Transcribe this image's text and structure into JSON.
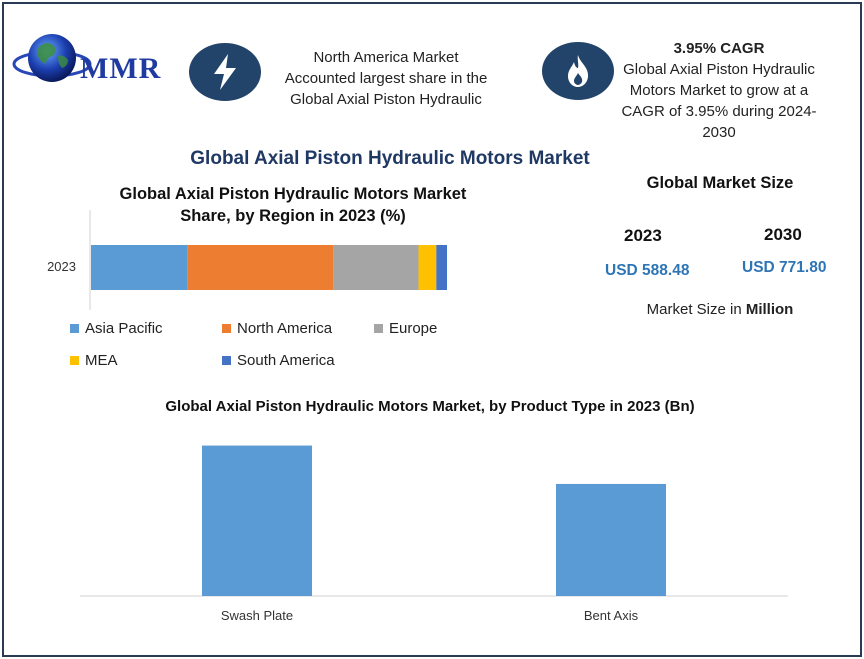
{
  "brand": {
    "logo_text": "MMR"
  },
  "highlights": {
    "share_note": "North America Market Accounted largest share in the Global Axial Piston Hydraulic",
    "share_note_lines": [
      "North America Market",
      "Accounted largest share in the",
      "Global Axial Piston Hydraulic"
    ],
    "cagr_title": "3.95% CAGR",
    "cagr_lines": [
      "Global Axial Piston Hydraulic",
      "Motors Market to grow at a",
      "CAGR of 3.95% during 2024-",
      "2030"
    ]
  },
  "main_title": "Global Axial Piston Hydraulic Motors Market",
  "market_size": {
    "title": "Global Market Size",
    "year_1": "2023",
    "value_1": "USD 588.48",
    "year_2": "2030",
    "value_2": "USD 771.80",
    "note_prefix": "Market Size in ",
    "note_bold": "Million"
  },
  "colors": {
    "Asia Pacific": "#5b9bd5",
    "North America": "#ed7d31",
    "Europe": "#a5a5a5",
    "MEA": "#ffc000",
    "South America": "#4472c4",
    "product_bar": "#5b9bd5"
  },
  "chart_data": [
    {
      "type": "bar",
      "orientation": "horizontal-stacked",
      "title_lines": [
        "Global Axial Piston Hydraulic Motors Market",
        "Share, by Region in 2023 (%)"
      ],
      "categories": [
        "2023"
      ],
      "series": [
        {
          "name": "Asia Pacific",
          "values": [
            27
          ]
        },
        {
          "name": "North America",
          "values": [
            41
          ]
        },
        {
          "name": "Europe",
          "values": [
            24
          ]
        },
        {
          "name": "MEA",
          "values": [
            5
          ]
        },
        {
          "name": "South America",
          "values": [
            3
          ]
        }
      ],
      "legend": "bottom",
      "grid": false
    },
    {
      "type": "bar",
      "title": "Global Axial Piston Hydraulic Motors Market, by Product Type in 2023 (Bn)",
      "categories": [
        "Swash Plate",
        "Bent Axis"
      ],
      "values": [
        1.45,
        1.08
      ],
      "ylim": [
        0,
        1.6
      ],
      "grid": false
    }
  ]
}
